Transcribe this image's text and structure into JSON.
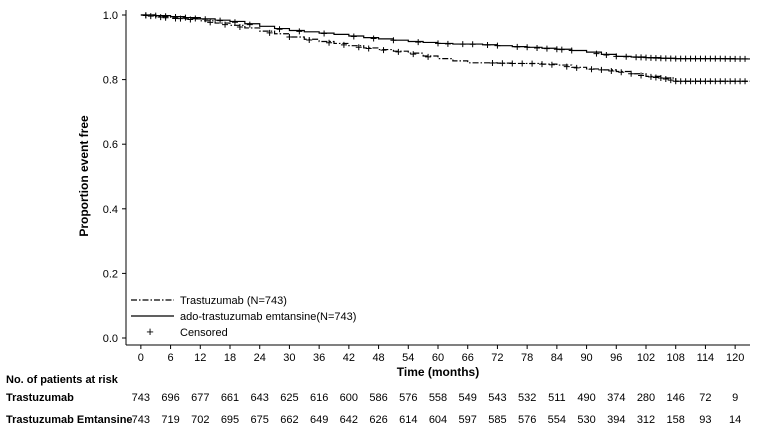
{
  "chart_data": {
    "type": "line",
    "title": "",
    "xlabel": "Time (months)",
    "ylabel": "Proportion event free",
    "xlim": [
      -3,
      123
    ],
    "ylim": [
      0,
      1
    ],
    "xticks": [
      0,
      6,
      12,
      18,
      24,
      30,
      36,
      42,
      48,
      54,
      60,
      66,
      72,
      78,
      84,
      90,
      96,
      102,
      108,
      114,
      120
    ],
    "xtick_labels": [
      "0",
      "6",
      "12",
      "18",
      "24",
      "30",
      "36",
      "42",
      "48",
      "54",
      "60",
      "66",
      "72",
      "78",
      "84",
      "90",
      "96",
      "102",
      "108",
      "114",
      "120"
    ],
    "yticks": [
      0,
      0.2,
      0.4,
      0.6,
      0.8,
      1
    ],
    "ytick_labels": [
      "0.0",
      "0.2",
      "0.4",
      "0.6",
      "0.8",
      "1.0"
    ],
    "legend_position": "bottom-left",
    "legend": [
      {
        "label": "Trastuzumab (N=743)",
        "style": "dashdot"
      },
      {
        "label": "ado-trastuzumab emtansine(N=743)",
        "style": "solid"
      },
      {
        "label": "Censored",
        "style": "plus"
      }
    ],
    "series": [
      {
        "name": "Trastuzumab (N=743)",
        "style": "dashdot",
        "x": [
          0,
          3,
          6,
          9,
          12,
          15,
          18,
          21,
          24,
          27,
          30,
          33,
          36,
          39,
          42,
          45,
          48,
          51,
          54,
          57,
          60,
          63,
          66,
          69,
          72,
          75,
          78,
          81,
          84,
          87,
          90,
          93,
          96,
          99,
          102,
          105,
          108,
          111,
          114,
          117,
          120,
          123
        ],
        "y": [
          1.0,
          0.995,
          0.99,
          0.988,
          0.982,
          0.975,
          0.968,
          0.96,
          0.95,
          0.942,
          0.932,
          0.925,
          0.918,
          0.912,
          0.905,
          0.898,
          0.893,
          0.888,
          0.882,
          0.873,
          0.865,
          0.858,
          0.852,
          0.852,
          0.851,
          0.85,
          0.85,
          0.848,
          0.845,
          0.838,
          0.833,
          0.83,
          0.825,
          0.818,
          0.81,
          0.805,
          0.795,
          0.795,
          0.795,
          0.795,
          0.795,
          0.795
        ]
      },
      {
        "name": "ado-trastuzumab emtansine(N=743)",
        "style": "solid",
        "x": [
          0,
          3,
          6,
          9,
          12,
          15,
          18,
          21,
          24,
          27,
          30,
          33,
          36,
          39,
          42,
          45,
          48,
          51,
          54,
          57,
          60,
          63,
          66,
          69,
          72,
          75,
          78,
          81,
          84,
          87,
          90,
          93,
          96,
          99,
          102,
          105,
          108,
          111,
          114,
          117,
          120,
          123
        ],
        "y": [
          1.0,
          0.998,
          0.995,
          0.992,
          0.988,
          0.984,
          0.98,
          0.973,
          0.965,
          0.958,
          0.952,
          0.948,
          0.944,
          0.94,
          0.935,
          0.93,
          0.926,
          0.922,
          0.918,
          0.915,
          0.912,
          0.91,
          0.91,
          0.908,
          0.905,
          0.902,
          0.9,
          0.897,
          0.894,
          0.89,
          0.885,
          0.878,
          0.872,
          0.87,
          0.868,
          0.866,
          0.865,
          0.865,
          0.865,
          0.865,
          0.864,
          0.864
        ]
      }
    ],
    "censored_marks": [
      {
        "series": "Trastuzumab (N=743)",
        "x": [
          1,
          2,
          4,
          5,
          7,
          8,
          10,
          14,
          17,
          20,
          26,
          30,
          34,
          38,
          41,
          44,
          46,
          49,
          52,
          55,
          58,
          71,
          73,
          75,
          77,
          79,
          81,
          83,
          86,
          88,
          91,
          93,
          95,
          97,
          99,
          101,
          103,
          104,
          105,
          106,
          107,
          108,
          109,
          110,
          111,
          112,
          113,
          114,
          115,
          116,
          117,
          118,
          119,
          120,
          121,
          122
        ]
      },
      {
        "series": "ado-trastuzumab emtansine(N=743)",
        "x": [
          1,
          3,
          5,
          7,
          9,
          11,
          13,
          16,
          19,
          22,
          28,
          32,
          37,
          43,
          47,
          51,
          56,
          60,
          62,
          65,
          67,
          70,
          72,
          76,
          78,
          80,
          82,
          84,
          85,
          87,
          92,
          94,
          96,
          98,
          100,
          101,
          102,
          103,
          104,
          105,
          106,
          107,
          108,
          109,
          110,
          111,
          112,
          113,
          114,
          115,
          116,
          117,
          118,
          119,
          120,
          121,
          122
        ]
      }
    ],
    "risk_table": {
      "title": "No. of patients at risk",
      "rows": [
        {
          "label": "Trastuzumab",
          "values": [
            "743",
            "696",
            "677",
            "661",
            "643",
            "625",
            "616",
            "600",
            "586",
            "576",
            "558",
            "549",
            "543",
            "532",
            "511",
            "490",
            "374",
            "280",
            "146",
            "72",
            "9"
          ]
        },
        {
          "label": "Trastuzumab Emtansine",
          "values": [
            "743",
            "719",
            "702",
            "695",
            "675",
            "662",
            "649",
            "642",
            "626",
            "614",
            "604",
            "597",
            "585",
            "576",
            "554",
            "530",
            "394",
            "312",
            "158",
            "93",
            "14"
          ]
        }
      ]
    }
  }
}
